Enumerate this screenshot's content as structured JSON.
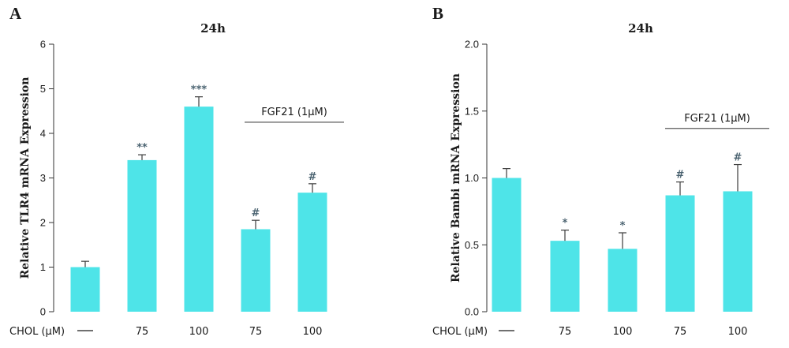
{
  "colors": {
    "bar": "#4ee4e8",
    "error": "#3c3c3c",
    "axis": "#333333",
    "sig": "#4a6270"
  },
  "row_label": "CHOL (μM)",
  "chart_data": [
    {
      "type": "bar",
      "panel": "A",
      "title": "24h",
      "ylabel": "Relative TLR4 mRNA Expression",
      "ylim": [
        0,
        6
      ],
      "yticks": [
        0,
        1,
        2,
        3,
        4,
        5,
        6
      ],
      "ytick_labels": [
        "0",
        "1",
        "2",
        "3",
        "4",
        "5",
        "6"
      ],
      "categories": [
        "—",
        "75",
        "100",
        "75",
        "100"
      ],
      "values": [
        1.0,
        3.4,
        4.6,
        1.85,
        2.67
      ],
      "errors": [
        0.13,
        0.12,
        0.22,
        0.2,
        0.2
      ],
      "significance": [
        "",
        "**",
        "***",
        "#",
        "#"
      ],
      "bracket": {
        "label": "FGF21 (1μM)",
        "from": 3,
        "to": 4,
        "y": 4.25
      }
    },
    {
      "type": "bar",
      "panel": "B",
      "title": "24h",
      "ylabel": "Relative Bambi mRNA Expression",
      "ylim": [
        0,
        2
      ],
      "yticks": [
        0,
        0.5,
        1,
        1.5,
        2
      ],
      "ytick_labels": [
        "0.0",
        "0.5",
        "1.0",
        "1.5",
        "2.0"
      ],
      "categories": [
        "—",
        "75",
        "100",
        "75",
        "100"
      ],
      "values": [
        1.0,
        0.53,
        0.47,
        0.87,
        0.9
      ],
      "errors": [
        0.07,
        0.08,
        0.12,
        0.1,
        0.2
      ],
      "significance": [
        "",
        "*",
        "*",
        "#",
        "#"
      ],
      "bracket": {
        "label": "FGF21 (1μM)",
        "from": 3,
        "to": 4,
        "y": 1.37
      }
    }
  ]
}
